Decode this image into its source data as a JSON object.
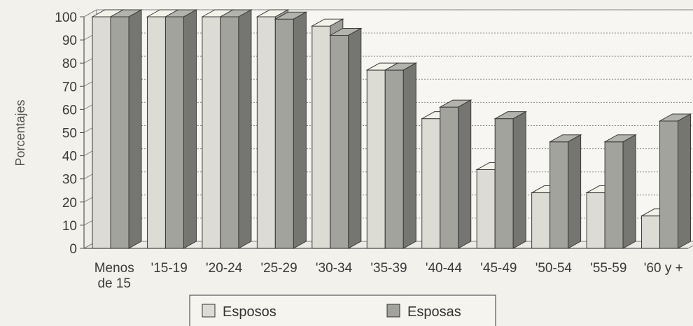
{
  "chart_data": {
    "type": "bar",
    "ylabel": "Porcentajes",
    "xlabel": "",
    "ylim": [
      0,
      100
    ],
    "yticks": [
      0,
      10,
      20,
      30,
      40,
      50,
      60,
      70,
      80,
      90,
      100
    ],
    "categories": [
      "Menos de 15",
      "'15-19",
      "'20-24",
      "'25-29",
      "'30-34",
      "'35-39",
      "'40-44",
      "'45-49",
      "'50-54",
      "'55-59",
      "'60 y +"
    ],
    "category_lines": [
      [
        "Menos",
        "de 15"
      ],
      [
        "'15-19"
      ],
      [
        "'20-24"
      ],
      [
        "'25-29"
      ],
      [
        "'30-34"
      ],
      [
        "'35-39"
      ],
      [
        "'40-44"
      ],
      [
        "'45-49"
      ],
      [
        "'50-54"
      ],
      [
        "'55-59"
      ],
      [
        "'60 y +"
      ]
    ],
    "series": [
      {
        "name": "Esposos",
        "color": "#dcdcd4",
        "values": [
          100,
          100,
          100,
          100,
          96,
          77,
          56,
          34,
          24,
          24,
          14
        ]
      },
      {
        "name": "Esposas",
        "color": "#a2a39d",
        "values": [
          100,
          100,
          100,
          99,
          92,
          77,
          61,
          56,
          46,
          46,
          55
        ]
      }
    ],
    "legend_position": "bottom-center",
    "grid": true,
    "style": "3d-bar"
  }
}
